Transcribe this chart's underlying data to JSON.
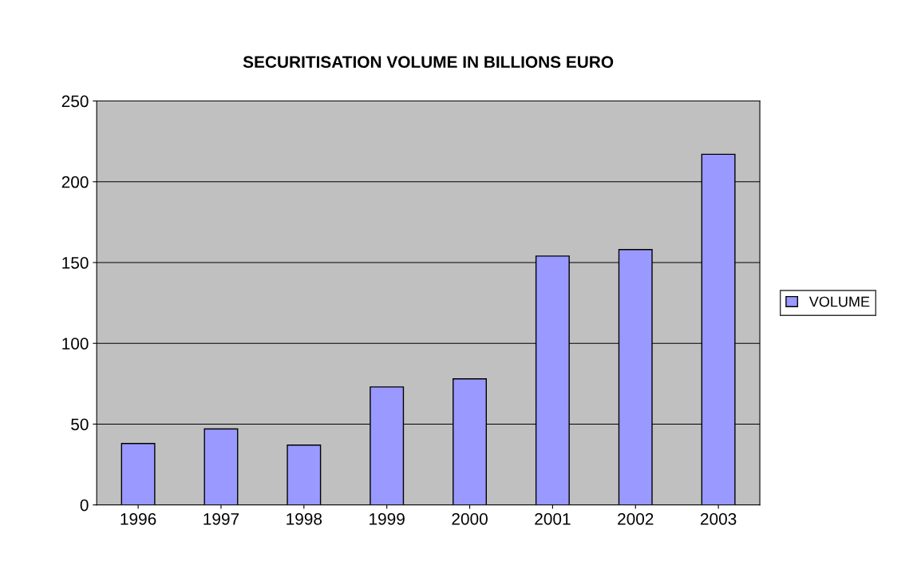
{
  "chart_data": {
    "type": "bar",
    "title": "SECURITISATION VOLUME IN BILLIONS EURO",
    "categories": [
      "1996",
      "1997",
      "1998",
      "1999",
      "2000",
      "2001",
      "2002",
      "2003"
    ],
    "series": [
      {
        "name": "VOLUME",
        "color": "#9999ff",
        "values": [
          38,
          47,
          37,
          73,
          78,
          154,
          158,
          217
        ]
      }
    ],
    "ylim": [
      0,
      250
    ],
    "yticks": [
      0,
      50,
      100,
      150,
      200,
      250
    ],
    "grid": "y",
    "legend": "right"
  }
}
